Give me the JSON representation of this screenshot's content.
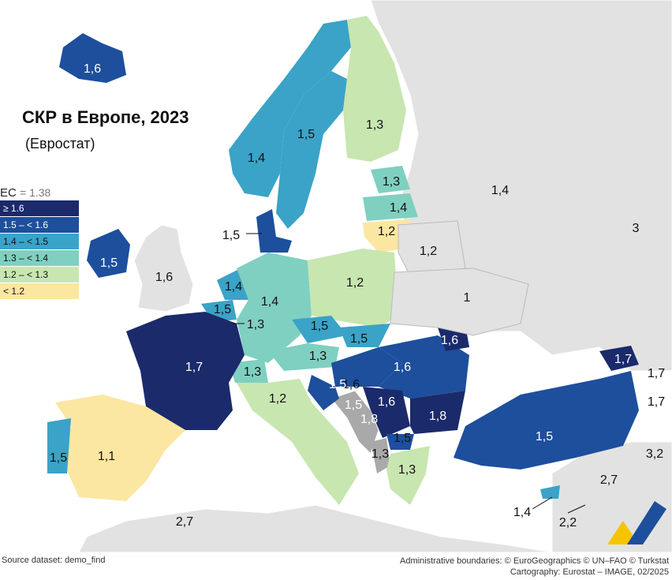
{
  "title": "СКР в Европе, 2023",
  "subtitle": "(Евростат)",
  "legend": {
    "average_label": "ЕС",
    "average_value": "= 1.38",
    "items": [
      {
        "label": "≥ 1.6",
        "color": "#1b2a6b",
        "text_color": "#ffffff"
      },
      {
        "label": "1.5 – < 1.6",
        "color": "#1d4f9c",
        "text_color": "#ffffff"
      },
      {
        "label": "1.4 – < 1.5",
        "color": "#3aa3c7",
        "text_color": "#111111"
      },
      {
        "label": "1.3 – < 1.4",
        "color": "#7fd0c0",
        "text_color": "#111111"
      },
      {
        "label": "1.2 – < 1.3",
        "color": "#c8e6b0",
        "text_color": "#111111"
      },
      {
        "label": "< 1.2",
        "color": "#fbe7a1",
        "text_color": "#111111"
      }
    ]
  },
  "colors": {
    "sea": "#ffffff",
    "non_eu_land": "#e2e2e2",
    "no_data": "#a9a9a9",
    "border": "#ffffff"
  },
  "countries": [
    {
      "name": "Iceland",
      "value": "1,6"
    },
    {
      "name": "Norway",
      "value": "1,4"
    },
    {
      "name": "Sweden",
      "value": "1,5"
    },
    {
      "name": "Finland",
      "value": "1,3"
    },
    {
      "name": "Estonia",
      "value": "1,3"
    },
    {
      "name": "Latvia",
      "value": "1,4"
    },
    {
      "name": "Lithuania",
      "value": "1,2"
    },
    {
      "name": "Denmark",
      "value": "1,5"
    },
    {
      "name": "Ireland",
      "value": "1,5"
    },
    {
      "name": "United Kingdom",
      "value": "1,6"
    },
    {
      "name": "Netherlands",
      "value": "1,4"
    },
    {
      "name": "Belgium",
      "value": "1,5"
    },
    {
      "name": "Luxembourg",
      "value": "1,3"
    },
    {
      "name": "Germany",
      "value": "1,4"
    },
    {
      "name": "Poland",
      "value": "1,2"
    },
    {
      "name": "Czechia",
      "value": "1,5"
    },
    {
      "name": "Slovakia",
      "value": "1,5"
    },
    {
      "name": "Austria",
      "value": "1,3"
    },
    {
      "name": "Switzerland",
      "value": "1,3"
    },
    {
      "name": "France",
      "value": "1,7"
    },
    {
      "name": "Italy",
      "value": "1,2"
    },
    {
      "name": "Spain",
      "value": "1,1"
    },
    {
      "name": "Portugal",
      "value": "1,5"
    },
    {
      "name": "Hungary",
      "value": "1,6"
    },
    {
      "name": "Romania",
      "value": "1,6"
    },
    {
      "name": "Moldova",
      "value": "1,6"
    },
    {
      "name": "Croatia",
      "value": "1,5"
    },
    {
      "name": "Bosnia and Herzegovina",
      "value": "1,5"
    },
    {
      "name": "Serbia",
      "value": "1,6"
    },
    {
      "name": "Montenegro",
      "value": "1,8"
    },
    {
      "name": "Bulgaria",
      "value": "1,8"
    },
    {
      "name": "North Macedonia",
      "value": "1,5"
    },
    {
      "name": "Albania",
      "value": "1,3"
    },
    {
      "name": "Greece",
      "value": "1,3"
    },
    {
      "name": "Turkey",
      "value": "1,5"
    },
    {
      "name": "Cyprus",
      "value": "1,4"
    },
    {
      "name": "Georgia",
      "value": "1,7"
    },
    {
      "name": "Armenia",
      "value": "1,7"
    },
    {
      "name": "Azerbaijan",
      "value": "1,7"
    },
    {
      "name": "Belarus",
      "value": "1,2"
    },
    {
      "name": "Ukraine",
      "value": "1"
    },
    {
      "name": "Russia",
      "value": "1,4"
    },
    {
      "name": "Kazakhstan",
      "value": "3"
    },
    {
      "name": "Iran",
      "value": "3,2"
    },
    {
      "name": "Syria",
      "value": "2,7"
    },
    {
      "name": "Lebanon",
      "value": "2,2"
    },
    {
      "name": "North Africa",
      "value": "2,7"
    }
  ],
  "footer": {
    "source": "Source dataset: demo_find",
    "boundaries": "Administrative boundaries: © EuroGeographics © UN–FAO © Turkstat",
    "cartography": "Cartography: Eurostat – IMAGE, 02/2025"
  }
}
